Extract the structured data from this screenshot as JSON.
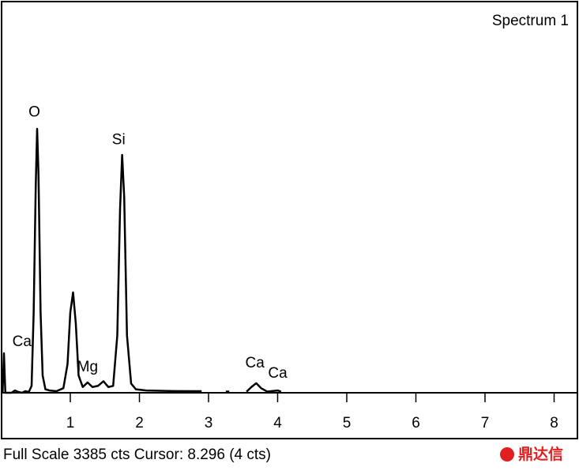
{
  "chart_data": {
    "type": "line",
    "title": "Spectrum 1",
    "status": "Full Scale 3385 cts Cursor: 8.296  (4 cts)",
    "watermark": "鼎达信",
    "x": [
      0.02,
      0.04,
      0.06,
      0.15,
      0.2,
      0.25,
      0.3,
      0.35,
      0.4,
      0.44,
      0.47,
      0.5,
      0.52,
      0.54,
      0.57,
      0.6,
      0.64,
      0.7,
      0.8,
      0.9,
      0.96,
      1.0,
      1.04,
      1.08,
      1.12,
      1.18,
      1.25,
      1.32,
      1.4,
      1.48,
      1.55,
      1.62,
      1.68,
      1.72,
      1.75,
      1.78,
      1.82,
      1.88,
      1.95,
      2.1,
      2.5,
      2.9,
      3.0,
      3.25,
      3.3,
      3.4,
      3.55,
      3.62,
      3.69,
      3.76,
      3.85,
      4.0,
      4.05
    ],
    "series": [
      {
        "color": "#000000",
        "values": [
          0,
          344,
          0,
          0,
          20,
          7,
          0,
          14,
          7,
          60,
          700,
          1800,
          2298,
          1900,
          700,
          150,
          30,
          20,
          14,
          40,
          250,
          700,
          874,
          600,
          150,
          50,
          90,
          50,
          60,
          100,
          50,
          60,
          500,
          1600,
          2071,
          1700,
          500,
          80,
          30,
          20,
          15,
          14,
          null,
          10,
          10,
          null,
          10,
          50,
          83,
          40,
          10,
          20,
          10
        ]
      }
    ],
    "annotations": [
      {
        "text": "O",
        "x": 0.48,
        "y": 2440
      },
      {
        "text": "Si",
        "x": 1.7,
        "y": 2200
      },
      {
        "text": "Ca",
        "x": 0.3,
        "y": 440
      },
      {
        "text": "Mg",
        "x": 1.25,
        "y": 220
      },
      {
        "text": "Ca",
        "x": 3.67,
        "y": 255
      },
      {
        "text": "Ca",
        "x": 4.0,
        "y": 165
      }
    ],
    "xlim": [
      0,
      8.36
    ],
    "xticks": [
      1,
      2,
      3,
      4,
      5,
      6,
      7,
      8
    ],
    "ylim": [
      0,
      3385
    ]
  }
}
